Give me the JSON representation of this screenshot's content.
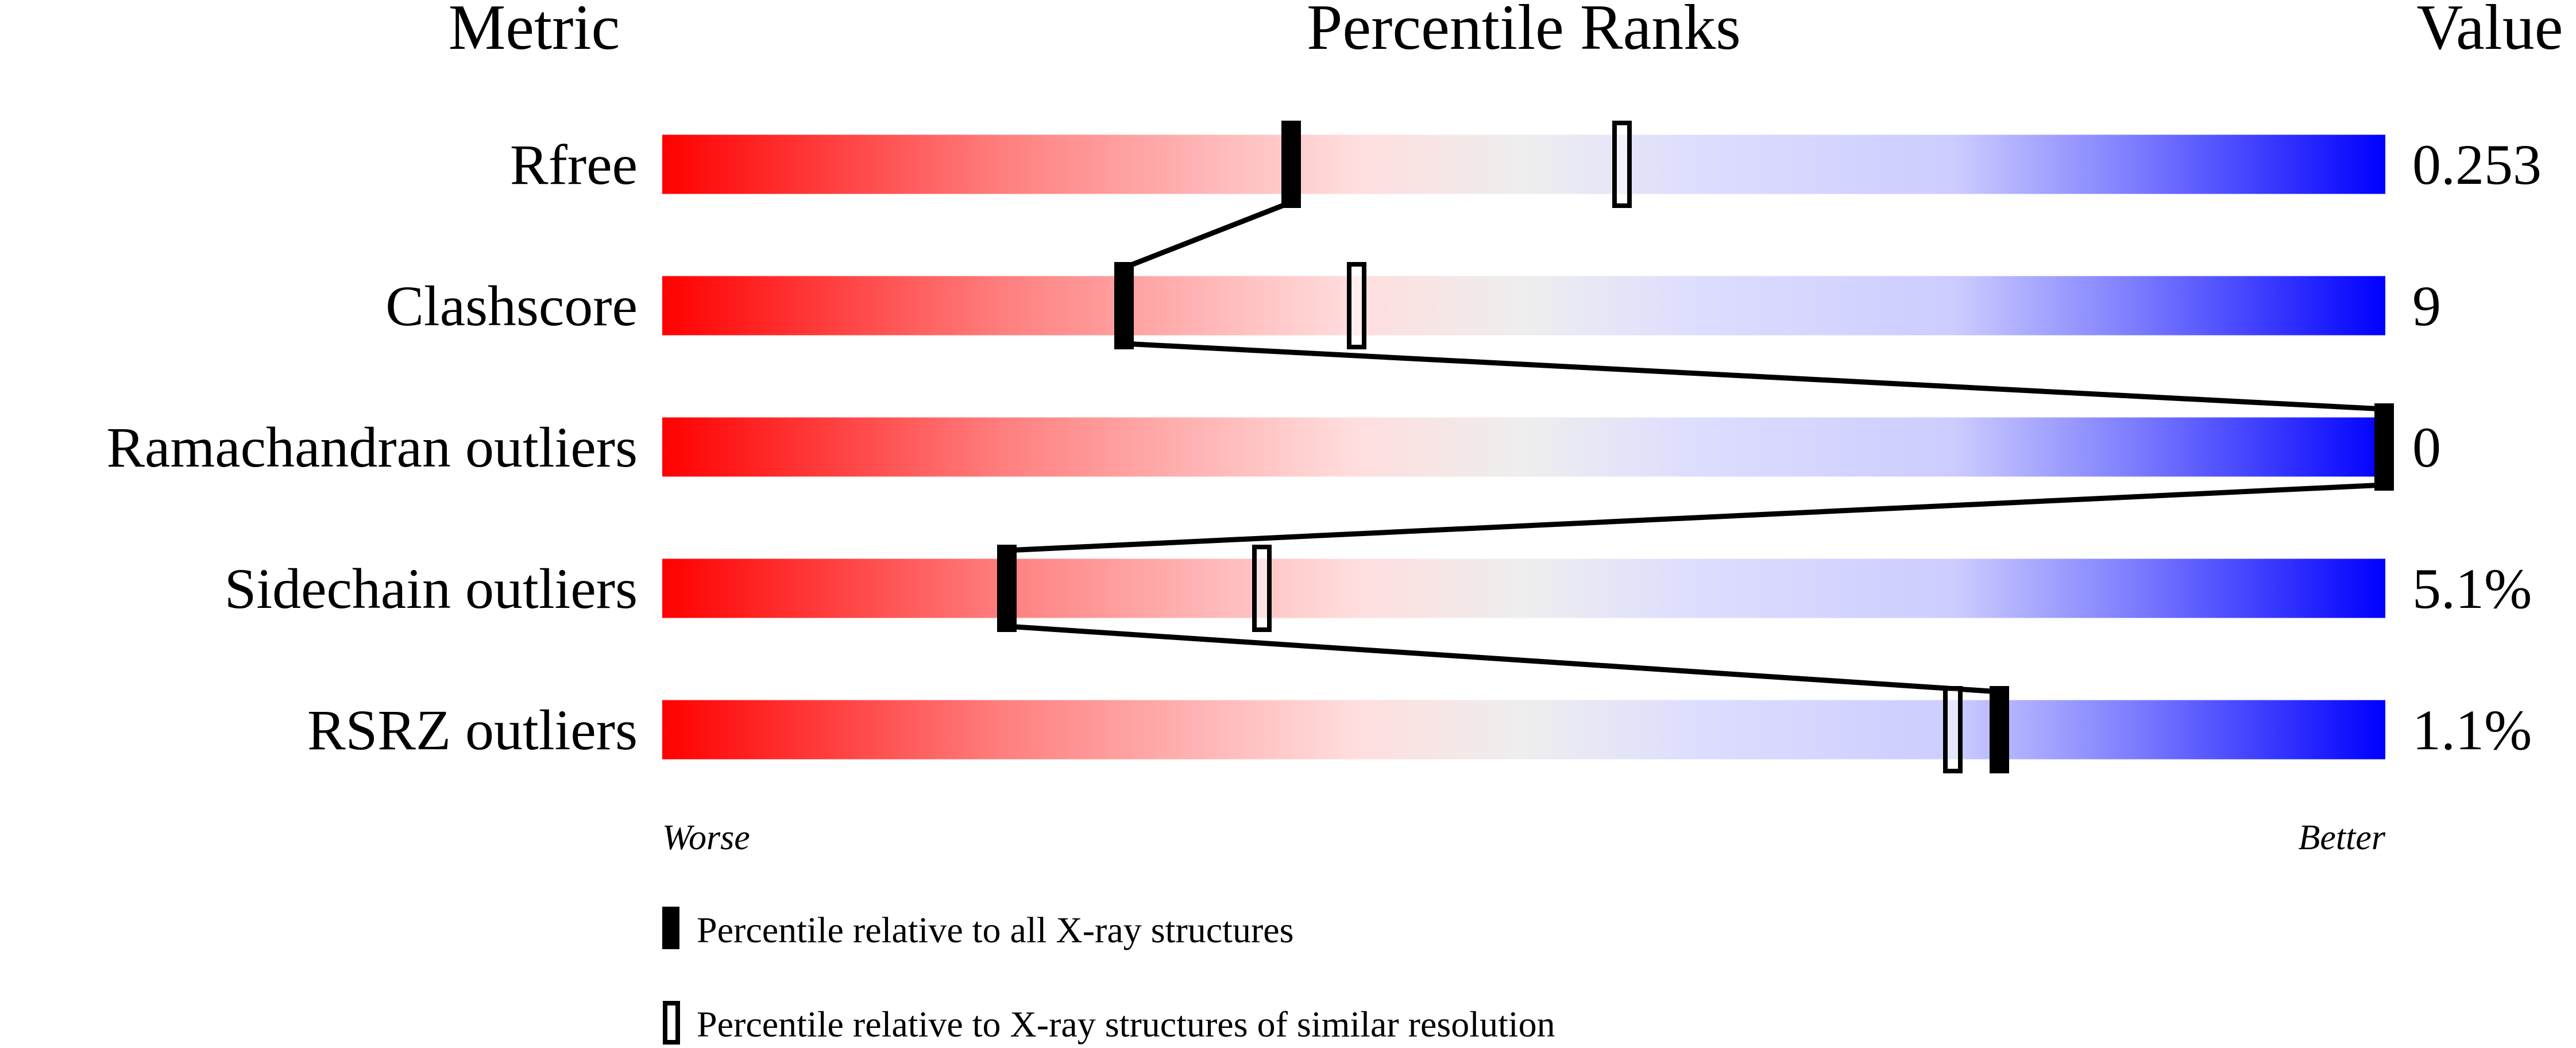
{
  "chart_data": {
    "type": "percentile-bar",
    "headers": {
      "metric": "Metric",
      "ranks": "Percentile Ranks",
      "value": "Value"
    },
    "xlim": [
      0,
      100
    ],
    "metrics": [
      {
        "name": "Rfree",
        "value": "0.253",
        "percentile_all": 36.5,
        "percentile_similar": 55.7
      },
      {
        "name": "Clashscore",
        "value": "9",
        "percentile_all": 26.8,
        "percentile_similar": 40.3
      },
      {
        "name": "Ramachandran outliers",
        "value": "0",
        "percentile_all": 100,
        "percentile_similar": null
      },
      {
        "name": "Sidechain outliers",
        "value": "5.1%",
        "percentile_all": 20.0,
        "percentile_similar": 34.8
      },
      {
        "name": "RSRZ outliers",
        "value": "1.1%",
        "percentile_all": 77.6,
        "percentile_similar": 74.9
      }
    ],
    "axis_labels": {
      "left": "Worse",
      "right": "Better"
    },
    "legend": [
      {
        "marker": "filled",
        "label": "Percentile relative to all X-ray structures"
      },
      {
        "marker": "open",
        "label": "Percentile relative to X-ray structures of similar resolution"
      }
    ],
    "colors": {
      "worse": "#ff0000",
      "middle": "#eeeeee",
      "better": "#0000ff"
    }
  }
}
